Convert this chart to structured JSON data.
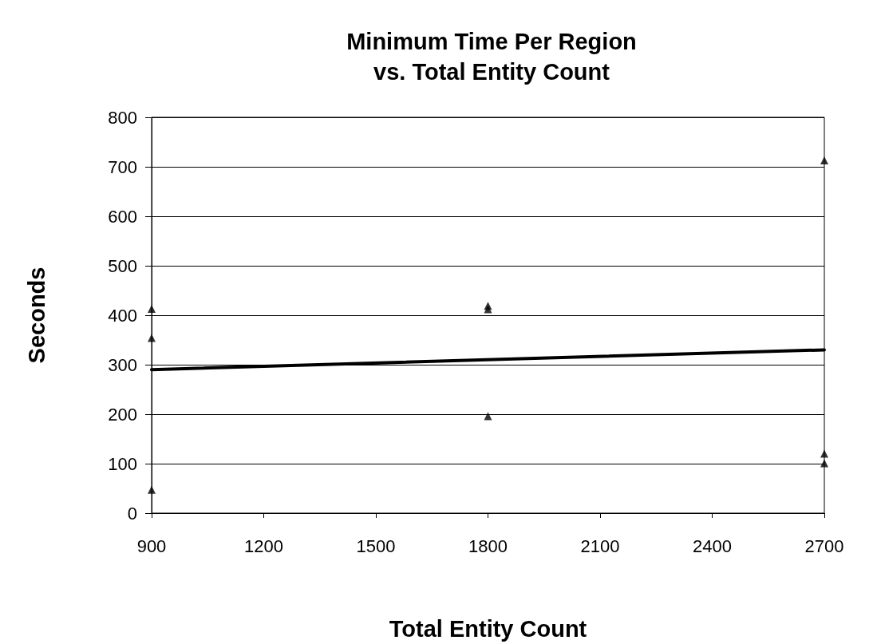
{
  "chart_data": {
    "type": "scatter",
    "title": "Minimum Time Per Region\nvs. Total Entity Count",
    "xlabel": "Total Entity Count",
    "ylabel": "Seconds",
    "series": [
      {
        "color": "#000000",
        "x": [
          900,
          900,
          900,
          1800,
          1800,
          1800,
          2700,
          2700,
          2700
        ],
        "values": [
          413,
          354,
          47,
          419,
          412,
          196,
          713,
          120,
          101
        ]
      },
      {
        "type": "line",
        "color": "#000000",
        "marker": "none",
        "x": [
          900,
          2700
        ],
        "values": [
          290,
          330
        ]
      }
    ],
    "xlim": [
      900,
      2700
    ],
    "xticks": [
      900,
      1200,
      1500,
      1800,
      2100,
      2400,
      2700
    ],
    "ylim": [
      0,
      800
    ],
    "yticks": [
      0,
      100,
      200,
      300,
      400,
      500,
      600,
      700,
      800
    ],
    "grid": "y",
    "marker": "triangle"
  }
}
